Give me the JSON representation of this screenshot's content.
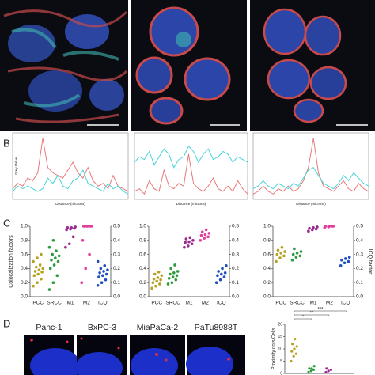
{
  "panel_labels": [
    "B",
    "C",
    "D"
  ],
  "profiles": [
    {
      "type": "line",
      "y_label": "Grey Value",
      "x_label": "Distance (microns)",
      "xlim": [
        0,
        11.5
      ],
      "ylim": [
        0,
        12500
      ],
      "x": [
        0,
        0.5,
        1,
        1.5,
        2,
        2.5,
        3,
        3.5,
        4,
        4.5,
        5,
        5.5,
        6,
        6.5,
        7,
        7.5,
        8,
        8.5,
        9,
        9.5,
        10,
        10.5,
        11,
        11.5
      ],
      "series": [
        {
          "color": "#e87878",
          "values": [
            2000,
            3000,
            2500,
            4000,
            3500,
            5000,
            11500,
            6000,
            5000,
            4500,
            4000,
            5500,
            7000,
            5000,
            4000,
            6000,
            3500,
            2500,
            3000,
            2000,
            4500,
            2500,
            2000,
            1500
          ]
        },
        {
          "color": "#48d4d8",
          "values": [
            1500,
            2500,
            2000,
            2500,
            2000,
            1500,
            2000,
            4000,
            3000,
            4500,
            2500,
            2000,
            3500,
            4000,
            5500,
            3000,
            2500,
            2000,
            1500,
            3000,
            2000,
            2500,
            1500,
            1000
          ]
        }
      ]
    },
    {
      "type": "line",
      "x_label": "Distance (microns)",
      "xlim": [
        0,
        11.5
      ],
      "ylim": [
        0,
        12500
      ],
      "x": [
        0,
        0.5,
        1,
        1.5,
        2,
        2.5,
        3,
        3.5,
        4,
        4.5,
        5,
        5.5,
        6,
        6.5,
        7,
        7.5,
        8,
        8.5,
        9,
        9.5,
        10,
        10.5,
        11,
        11.5
      ],
      "series": [
        {
          "color": "#e87878",
          "values": [
            1500,
            2000,
            1000,
            3500,
            2000,
            1500,
            5500,
            2500,
            2000,
            3000,
            2500,
            8500,
            3000,
            2000,
            1500,
            2500,
            4000,
            2000,
            1500,
            2500,
            1500,
            3500,
            2000,
            1000
          ]
        },
        {
          "color": "#48d4d8",
          "values": [
            7000,
            8000,
            7500,
            9000,
            6500,
            8000,
            9500,
            8500,
            6000,
            7500,
            8000,
            10000,
            9000,
            7000,
            8500,
            9500,
            7500,
            8000,
            9000,
            8500,
            7000,
            8000,
            7500,
            7000
          ]
        }
      ]
    },
    {
      "type": "line",
      "x_label": "Distance (microns)",
      "xlim": [
        0,
        11.5
      ],
      "ylim": [
        0,
        12500
      ],
      "x": [
        0,
        0.5,
        1,
        1.5,
        2,
        2.5,
        3,
        3.5,
        4,
        4.5,
        5,
        5.5,
        6,
        6.5,
        7,
        7.5,
        8,
        8.5,
        9,
        9.5,
        10,
        10.5,
        11,
        11.5
      ],
      "series": [
        {
          "color": "#e87878",
          "values": [
            1000,
            1500,
            2500,
            1500,
            1000,
            2000,
            1500,
            2500,
            1500,
            2000,
            3500,
            6000,
            11500,
            5000,
            2500,
            2000,
            1500,
            2500,
            3500,
            2000,
            1500,
            3000,
            2000,
            1500
          ]
        },
        {
          "color": "#48d4d8",
          "values": [
            2000,
            2500,
            3500,
            2500,
            2000,
            3000,
            2500,
            2000,
            3000,
            2500,
            4000,
            5500,
            6000,
            4500,
            3000,
            2500,
            2000,
            3000,
            4500,
            3500,
            5000,
            4000,
            3000,
            2500
          ]
        }
      ]
    }
  ],
  "colocalization": [
    {
      "type": "scatter",
      "y_label": "Colocalization factors",
      "ylim": [
        0,
        1
      ],
      "yticks": [
        {
          "value": 0,
          "label": "0.0"
        },
        0.2,
        0.4,
        0.6,
        0.8,
        {
          "value": 1,
          "label": "1.0"
        }
      ],
      "y2lim": [
        0,
        0.5
      ],
      "y2ticks": [
        {
          "value": 0,
          "label": "0.0"
        },
        0.1,
        0.2,
        0.3,
        0.4,
        0.5
      ],
      "series": [
        {
          "name": "PCC",
          "color": "#b8a020",
          "values": [
            0.15,
            0.2,
            0.25,
            0.3,
            0.32,
            0.35,
            0.36,
            0.38,
            0.4,
            0.42,
            0.45,
            0.5,
            0.55,
            0.6
          ]
        },
        {
          "name": "SRCC",
          "color": "#2e9b3e",
          "values": [
            0.1,
            0.2,
            0.3,
            0.4,
            0.45,
            0.5,
            0.52,
            0.55,
            0.58,
            0.6,
            0.65,
            0.7,
            0.8
          ]
        },
        {
          "name": "M1",
          "color": "#9b2a8f",
          "values": [
            0.7,
            0.75,
            0.85,
            0.95,
            0.96,
            0.97,
            0.98,
            0.98,
            0.99
          ]
        },
        {
          "name": "M2",
          "color": "#e040a0",
          "values": [
            0.2,
            0.4,
            0.6,
            0.8,
            1,
            1,
            1,
            1,
            1,
            1
          ]
        },
        {
          "name": "ICQ",
          "axis": "y2",
          "color": "#2050c0",
          "values": [
            0.08,
            0.1,
            0.12,
            0.14,
            0.15,
            0.16,
            0.17,
            0.18,
            0.19,
            0.2,
            0.22,
            0.25
          ]
        }
      ]
    },
    {
      "type": "scatter",
      "ylim": [
        0,
        1
      ],
      "yticks": [
        {
          "value": 0,
          "label": "0.0"
        },
        0.2,
        0.4,
        0.6,
        0.8,
        {
          "value": 1,
          "label": "1.0"
        }
      ],
      "y2lim": [
        0,
        0.5
      ],
      "y2ticks": [
        {
          "value": 0,
          "label": "0.0"
        },
        0.1,
        0.2,
        0.3,
        0.4,
        0.5
      ],
      "series": [
        {
          "name": "PCC",
          "color": "#b8a020",
          "values": [
            0.12,
            0.15,
            0.18,
            0.2,
            0.22,
            0.24,
            0.25,
            0.27,
            0.3,
            0.32,
            0.35
          ]
        },
        {
          "name": "SRCC",
          "color": "#2e9b3e",
          "values": [
            0.18,
            0.2,
            0.24,
            0.26,
            0.28,
            0.3,
            0.32,
            0.34,
            0.36,
            0.4,
            0.45
          ]
        },
        {
          "name": "M1",
          "color": "#9b2a8f",
          "values": [
            0.7,
            0.72,
            0.75,
            0.77,
            0.78,
            0.8,
            0.82,
            0.84
          ]
        },
        {
          "name": "M2",
          "color": "#e040a0",
          "values": [
            0.8,
            0.83,
            0.85,
            0.87,
            0.88,
            0.9,
            0.92,
            0.95
          ]
        },
        {
          "name": "ICQ",
          "axis": "y2",
          "color": "#2050c0",
          "values": [
            0.1,
            0.12,
            0.14,
            0.15,
            0.16,
            0.17,
            0.18,
            0.2,
            0.22
          ]
        }
      ]
    },
    {
      "type": "scatter",
      "y2_label": "ICQ factor",
      "ylim": [
        0,
        1
      ],
      "yticks": [
        {
          "value": 0,
          "label": "0.0"
        },
        0.2,
        0.4,
        0.6,
        0.8,
        {
          "value": 1,
          "label": "1.0"
        }
      ],
      "y2lim": [
        0,
        0.5
      ],
      "y2ticks": [
        {
          "value": 0,
          "label": "0.0"
        },
        0.1,
        0.2,
        0.3,
        0.4,
        0.5
      ],
      "series": [
        {
          "name": "PCC",
          "color": "#b8a020",
          "values": [
            0.5,
            0.55,
            0.58,
            0.6,
            0.62,
            0.64,
            0.66,
            0.7
          ]
        },
        {
          "name": "SRCC",
          "color": "#2e9b3e",
          "values": [
            0.52,
            0.56,
            0.58,
            0.6,
            0.62,
            0.64,
            0.68
          ]
        },
        {
          "name": "M1",
          "color": "#9b2a8f",
          "values": [
            0.93,
            0.95,
            0.96,
            0.97,
            0.98,
            0.99
          ]
        },
        {
          "name": "M2",
          "color": "#e040a0",
          "values": [
            0.98,
            0.99,
            1,
            1,
            1,
            1
          ]
        },
        {
          "name": "ICQ",
          "axis": "y2",
          "color": "#2050c0",
          "values": [
            0.22,
            0.24,
            0.25,
            0.26,
            0.27,
            0.28
          ]
        }
      ]
    }
  ],
  "cell_lines": [
    "Panc-1",
    "BxPC-3",
    "MiaPaCa-2",
    "PaTu8988T"
  ],
  "proximity": {
    "type": "scatter",
    "y_label": "Proximity dots/Cells",
    "ylim": [
      0,
      20
    ],
    "yticks": [
      0,
      5,
      10,
      15,
      20
    ],
    "groups": [
      {
        "color": "#b8a020",
        "values": [
          5,
          7,
          8,
          9,
          10,
          11,
          12,
          14
        ]
      },
      {
        "color": "#2e9b3e",
        "values": [
          0.5,
          1,
          1.5,
          2,
          2,
          3
        ]
      },
      {
        "color": "#9b2a8f",
        "values": [
          0.5,
          1,
          1.5,
          2
        ]
      }
    ],
    "significance": [
      "*",
      "**",
      "***"
    ]
  }
}
